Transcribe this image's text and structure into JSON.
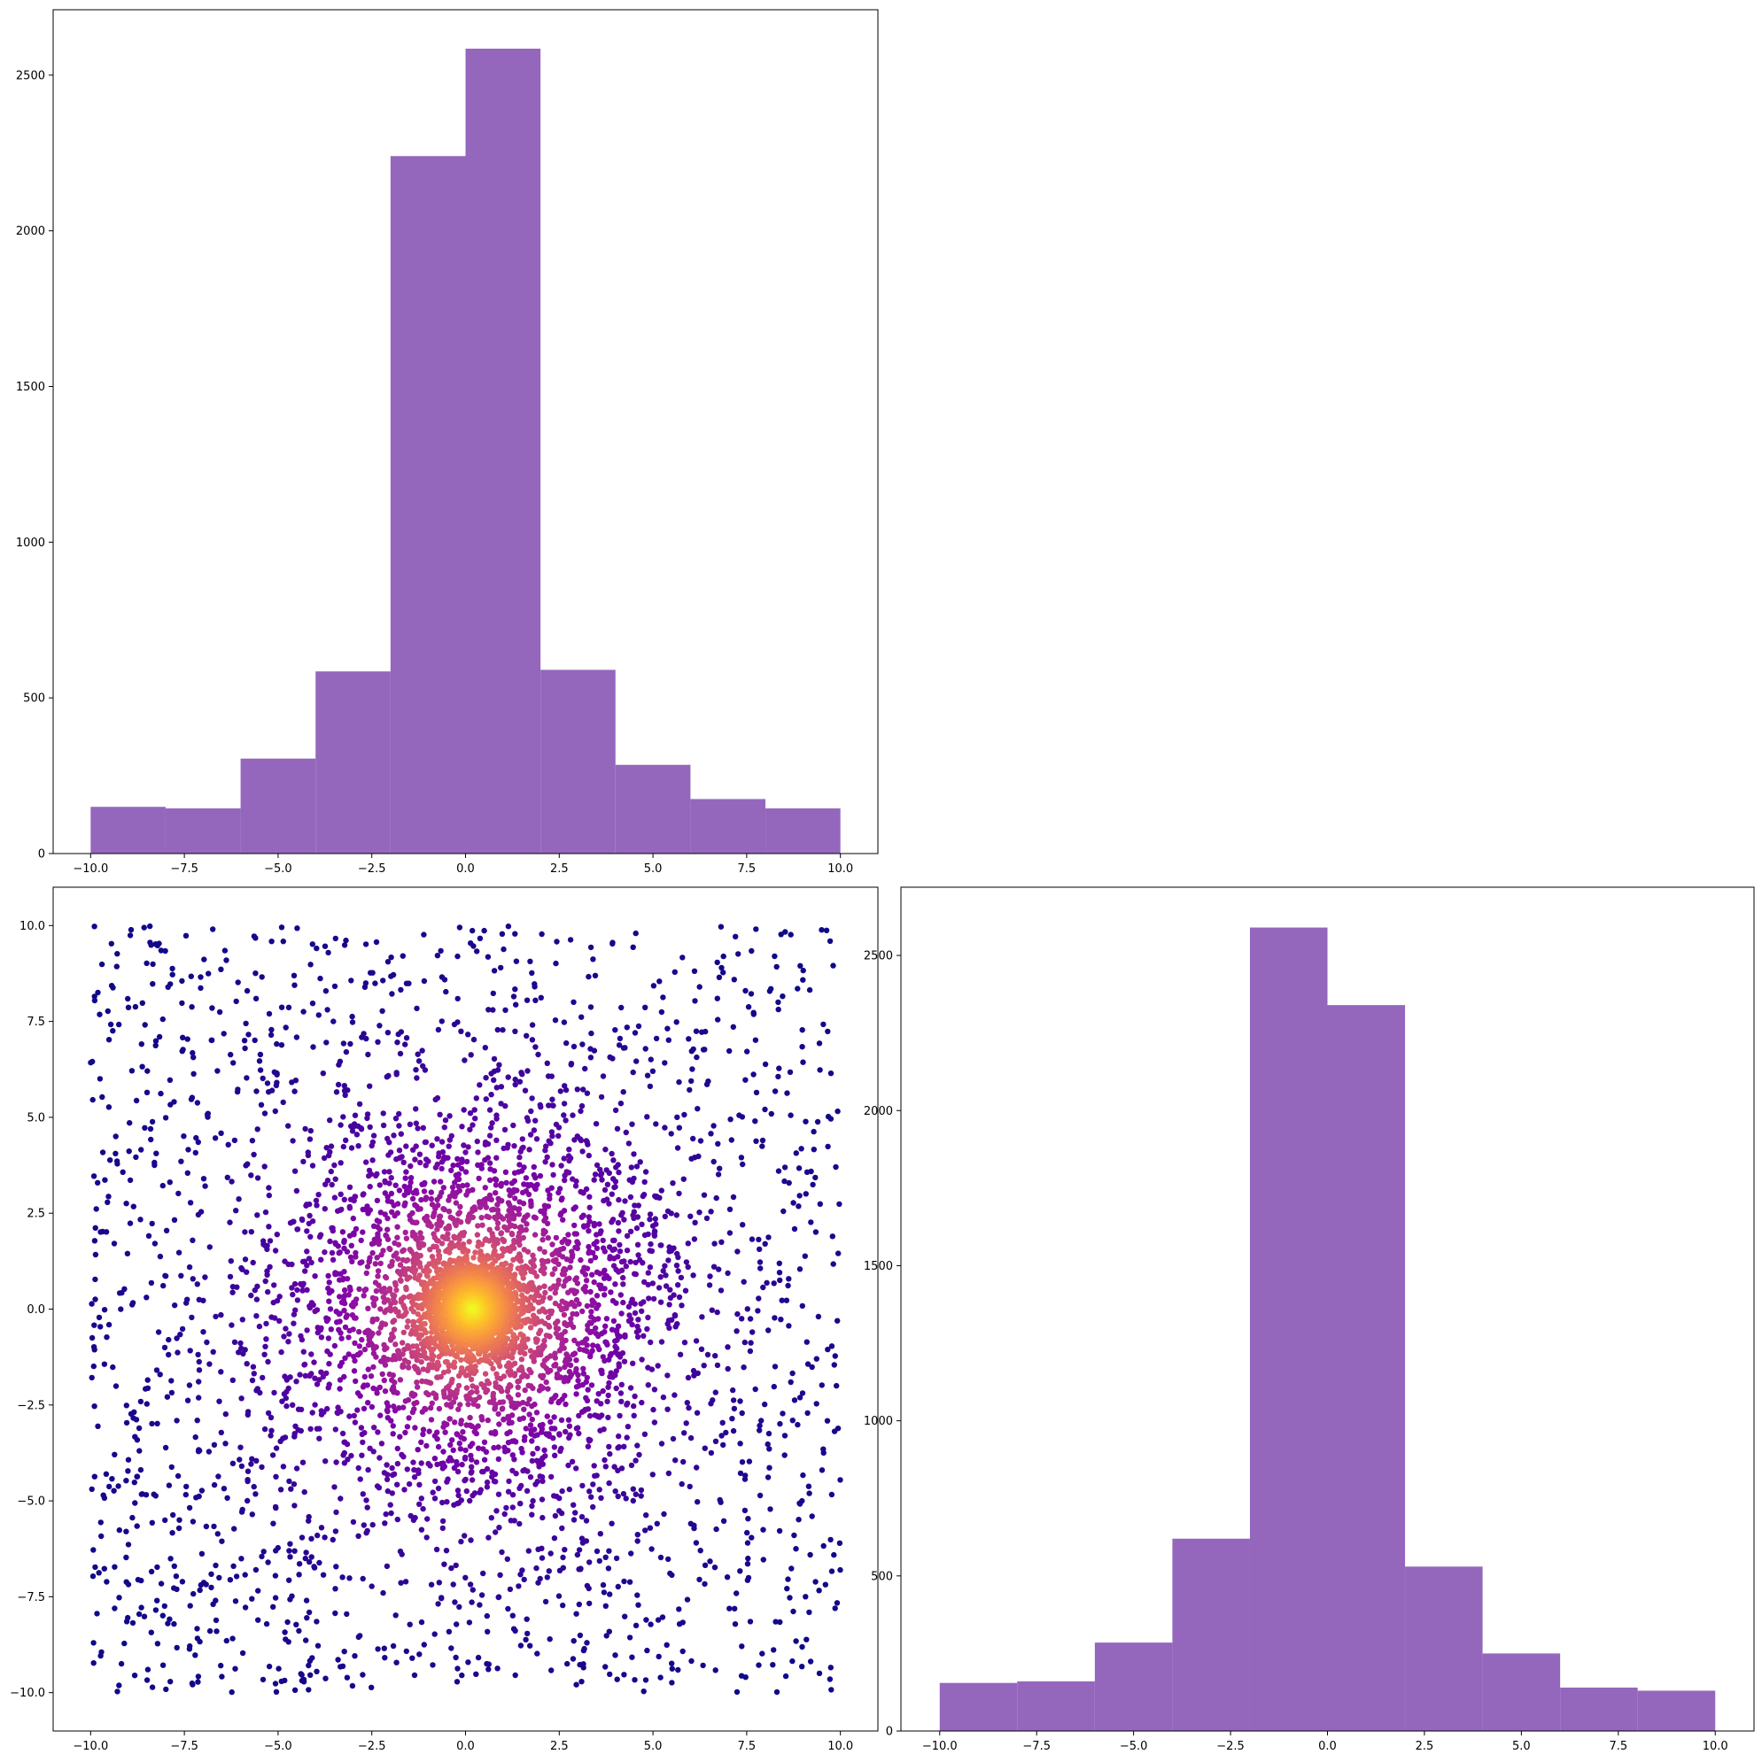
{
  "figure": {
    "layout": "corner plot: top-left histogram (x), bottom-left scatter (x vs y), bottom-right histogram (y)",
    "background": "#ffffff"
  },
  "chart_data": [
    {
      "id": "hist-x",
      "type": "bar",
      "position": "top-left",
      "color": "#9467bd",
      "bin_edges": [
        -10,
        -8,
        -6,
        -4,
        -2,
        0,
        2,
        4,
        6,
        8,
        10
      ],
      "values": [
        150,
        145,
        305,
        585,
        2240,
        2585,
        590,
        285,
        175,
        145
      ],
      "xlim": [
        -11,
        11
      ],
      "ylim": [
        0,
        2710
      ],
      "xticks": [
        -10,
        -7.5,
        -5,
        -2.5,
        0,
        2.5,
        5,
        7.5,
        10
      ],
      "xtick_labels": [
        "−10.0",
        "−7.5",
        "−5.0",
        "−2.5",
        "0.0",
        "2.5",
        "5.0",
        "7.5",
        "10.0"
      ],
      "yticks": [
        0,
        500,
        1000,
        1500,
        2000,
        2500
      ],
      "ytick_labels": [
        "0",
        "500",
        "1000",
        "1500",
        "2000",
        "2500"
      ],
      "title": "",
      "xlabel": "",
      "ylabel": "",
      "grid": false
    },
    {
      "id": "scatter-xy",
      "type": "scatter",
      "position": "bottom-left",
      "colormap": "plasma",
      "color_by": "density (higher near origin)",
      "n_points": 6000,
      "distribution": "mixture: ~75% concentrated around (0,0), ~25% uniform on [-10,10]×[-10,10]",
      "xlim": [
        -11,
        11
      ],
      "ylim": [
        -11,
        11
      ],
      "xticks": [
        -10,
        -7.5,
        -5,
        -2.5,
        0,
        2.5,
        5,
        7.5,
        10
      ],
      "xtick_labels": [
        "−10.0",
        "−7.5",
        "−5.0",
        "−2.5",
        "0.0",
        "2.5",
        "5.0",
        "7.5",
        "10.0"
      ],
      "yticks": [
        -10,
        -7.5,
        -5,
        -2.5,
        0,
        2.5,
        5,
        7.5,
        10
      ],
      "ytick_labels": [
        "−10.0",
        "−7.5",
        "−5.0",
        "−2.5",
        "0.0",
        "2.5",
        "5.0",
        "7.5",
        "10.0"
      ],
      "title": "",
      "xlabel": "",
      "ylabel": "",
      "grid": false
    },
    {
      "id": "hist-y",
      "type": "bar",
      "position": "bottom-right",
      "color": "#9467bd",
      "bin_edges": [
        -10,
        -8,
        -6,
        -4,
        -2,
        0,
        2,
        4,
        6,
        8,
        10
      ],
      "values": [
        155,
        160,
        285,
        620,
        2590,
        2340,
        530,
        250,
        140,
        130
      ],
      "xlim": [
        -11,
        11
      ],
      "ylim": [
        0,
        2720
      ],
      "xticks": [
        -10,
        -7.5,
        -5,
        -2.5,
        0,
        2.5,
        5,
        7.5,
        10
      ],
      "xtick_labels": [
        "−10.0",
        "−7.5",
        "−5.0",
        "−2.5",
        "0.0",
        "2.5",
        "5.0",
        "7.5",
        "10.0"
      ],
      "yticks": [
        0,
        500,
        1000,
        1500,
        2000,
        2500
      ],
      "ytick_labels": [
        "0",
        "500",
        "1000",
        "1500",
        "2000",
        "2500"
      ],
      "title": "",
      "xlabel": "",
      "ylabel": "",
      "grid": false
    }
  ]
}
